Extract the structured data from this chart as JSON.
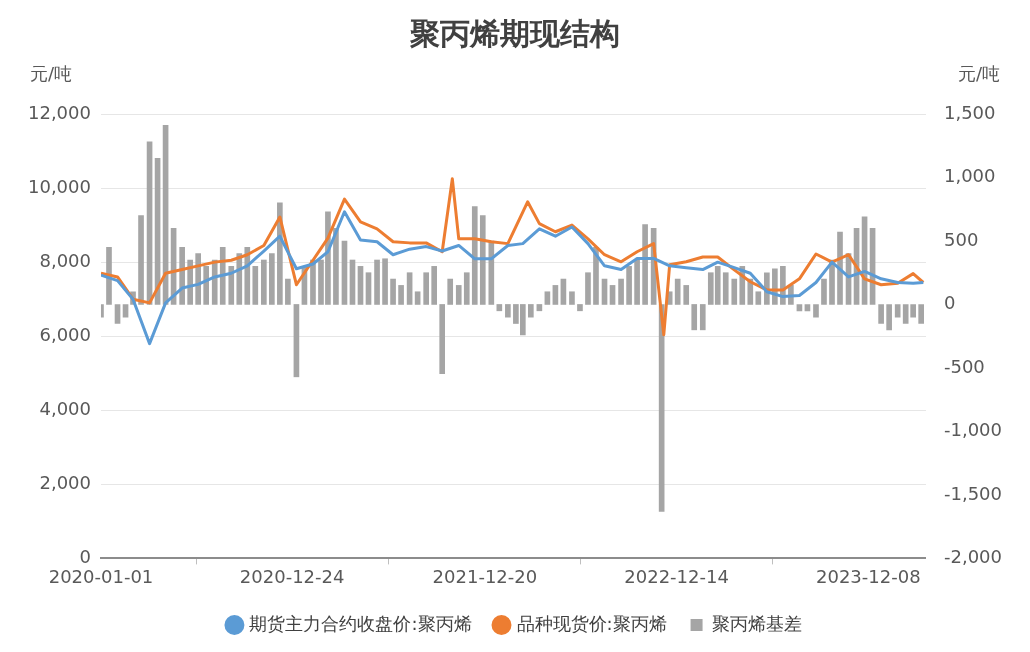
{
  "chart_data": {
    "type": "line",
    "title": "聚丙烯期现结构",
    "ylabel": "元/吨",
    "y2label": "元/吨",
    "xlim": [
      "2020-01-01",
      "2024-03-25"
    ],
    "xticks": [
      "2020-01-01",
      "2020-12-24",
      "2021-12-20",
      "2022-12-14",
      "2023-12-08"
    ],
    "ylim": [
      0,
      12000
    ],
    "yticks": [
      {
        "value": 0,
        "label": "0"
      },
      {
        "value": 2000,
        "label": "2,000"
      },
      {
        "value": 4000,
        "label": "4,000"
      },
      {
        "value": 6000,
        "label": "6,000"
      },
      {
        "value": 8000,
        "label": "8,000"
      },
      {
        "value": 10000,
        "label": "10,000"
      },
      {
        "value": 12000,
        "label": "12,000"
      }
    ],
    "y2lim": [
      -2000,
      1500
    ],
    "y2ticks": [
      {
        "value": -2000,
        "label": "-2,000"
      },
      {
        "value": -1500,
        "label": "-1,500"
      },
      {
        "value": -1000,
        "label": "-1,000"
      },
      {
        "value": -500,
        "label": "-500"
      },
      {
        "value": 0,
        "label": "0"
      },
      {
        "value": 500,
        "label": "500"
      },
      {
        "value": 1000,
        "label": "1,000"
      },
      {
        "value": 1500,
        "label": "1,500"
      }
    ],
    "grid": "y",
    "legend": "bottom",
    "marker": "none",
    "line_style": "solid",
    "series": [
      {
        "name": "期货主力合约收盘价:聚丙烯",
        "color": "#5b9bd5",
        "x": [
          "2020-01-01",
          "2020-02-01",
          "2020-03-01",
          "2020-04-01",
          "2020-05-01",
          "2020-06-01",
          "2020-07-01",
          "2020-08-01",
          "2020-09-01",
          "2020-10-01",
          "2020-11-01",
          "2020-12-01",
          "2021-01-01",
          "2021-02-01",
          "2021-03-01",
          "2021-04-01",
          "2021-05-01",
          "2021-06-01",
          "2021-07-01",
          "2021-08-01",
          "2021-09-01",
          "2021-10-01",
          "2021-11-01",
          "2021-12-01",
          "2022-01-01",
          "2022-02-01",
          "2022-03-01",
          "2022-04-01",
          "2022-05-01",
          "2022-06-01",
          "2022-07-01",
          "2022-08-01",
          "2022-09-01",
          "2022-10-01",
          "2022-11-01",
          "2022-12-01",
          "2023-01-01",
          "2023-02-01",
          "2023-03-01",
          "2023-04-01",
          "2023-05-01",
          "2023-06-01",
          "2023-07-01",
          "2023-08-01",
          "2023-09-01",
          "2023-10-01",
          "2023-11-01",
          "2023-12-01",
          "2024-01-01",
          "2024-02-01",
          "2024-03-01",
          "2024-03-20"
        ],
        "values": [
          7650,
          7500,
          7000,
          5800,
          6900,
          7300,
          7400,
          7600,
          7700,
          7900,
          8300,
          8700,
          7820,
          7950,
          8280,
          9360,
          8600,
          8550,
          8200,
          8350,
          8420,
          8300,
          8450,
          8090,
          8090,
          8450,
          8500,
          8900,
          8700,
          8950,
          8500,
          7900,
          7800,
          8100,
          8100,
          7900,
          7850,
          7800,
          8000,
          7850,
          7700,
          7200,
          7070,
          7100,
          7450,
          8000,
          7600,
          7750,
          7550,
          7450,
          7430,
          7450
        ]
      },
      {
        "name": "品种现货价:聚丙烯",
        "color": "#ed7d31",
        "x": [
          "2020-01-01",
          "2020-02-01",
          "2020-03-01",
          "2020-04-01",
          "2020-05-01",
          "2020-06-01",
          "2020-07-01",
          "2020-08-01",
          "2020-09-01",
          "2020-10-01",
          "2020-11-01",
          "2020-12-01",
          "2021-01-01",
          "2021-02-01",
          "2021-03-01",
          "2021-04-01",
          "2021-05-01",
          "2021-06-01",
          "2021-07-01",
          "2021-08-01",
          "2021-09-01",
          "2021-10-01",
          "2021-10-20",
          "2021-11-01",
          "2021-12-01",
          "2022-01-01",
          "2022-02-01",
          "2022-03-10",
          "2022-04-01",
          "2022-05-01",
          "2022-06-01",
          "2022-07-01",
          "2022-08-01",
          "2022-09-01",
          "2022-10-01",
          "2022-11-01",
          "2022-11-20",
          "2022-12-01",
          "2023-01-01",
          "2023-02-01",
          "2023-03-01",
          "2023-04-01",
          "2023-05-01",
          "2023-06-01",
          "2023-07-01",
          "2023-08-01",
          "2023-09-01",
          "2023-10-01",
          "2023-11-01",
          "2023-12-01",
          "2024-01-01",
          "2024-02-01",
          "2024-03-01",
          "2024-03-20"
        ],
        "values": [
          7700,
          7600,
          7000,
          6900,
          7700,
          7800,
          7900,
          8000,
          8050,
          8200,
          8450,
          9220,
          7390,
          8050,
          8650,
          9700,
          9090,
          8900,
          8550,
          8520,
          8520,
          8280,
          10250,
          8630,
          8630,
          8550,
          8500,
          9630,
          9040,
          8820,
          9000,
          8630,
          8200,
          8010,
          8280,
          8500,
          6040,
          7930,
          8010,
          8140,
          8140,
          7790,
          7470,
          7250,
          7250,
          7550,
          8220,
          8000,
          8200,
          7550,
          7390,
          7430,
          7690,
          7450
        ]
      },
      {
        "name": "聚丙烯基差",
        "type": "bar",
        "axis": "y2",
        "color": "#a5a5a5",
        "x": [
          "2020-01-01",
          "2020-01-16",
          "2020-02-01",
          "2020-02-16",
          "2020-03-01",
          "2020-03-16",
          "2020-04-01",
          "2020-04-16",
          "2020-05-01",
          "2020-05-16",
          "2020-06-01",
          "2020-06-16",
          "2020-07-01",
          "2020-07-16",
          "2020-08-01",
          "2020-08-16",
          "2020-09-01",
          "2020-09-16",
          "2020-10-01",
          "2020-10-16",
          "2020-11-01",
          "2020-11-16",
          "2020-12-01",
          "2020-12-16",
          "2021-01-01",
          "2021-01-16",
          "2021-02-01",
          "2021-02-16",
          "2021-03-01",
          "2021-03-16",
          "2021-04-01",
          "2021-04-16",
          "2021-05-01",
          "2021-05-16",
          "2021-06-01",
          "2021-06-16",
          "2021-07-01",
          "2021-07-16",
          "2021-08-01",
          "2021-08-16",
          "2021-09-01",
          "2021-09-16",
          "2021-10-01",
          "2021-10-16",
          "2021-11-01",
          "2021-11-16",
          "2021-12-01",
          "2021-12-16",
          "2022-01-01",
          "2022-01-16",
          "2022-02-01",
          "2022-02-16",
          "2022-03-01",
          "2022-03-16",
          "2022-04-01",
          "2022-04-16",
          "2022-05-01",
          "2022-05-16",
          "2022-06-01",
          "2022-06-16",
          "2022-07-01",
          "2022-07-16",
          "2022-08-01",
          "2022-08-16",
          "2022-09-01",
          "2022-09-16",
          "2022-10-01",
          "2022-10-16",
          "2022-11-01",
          "2022-11-16",
          "2022-12-01",
          "2022-12-16",
          "2023-01-01",
          "2023-01-16",
          "2023-02-01",
          "2023-02-16",
          "2023-03-01",
          "2023-03-16",
          "2023-04-01",
          "2023-04-16",
          "2023-05-01",
          "2023-05-16",
          "2023-06-01",
          "2023-06-16",
          "2023-07-01",
          "2023-07-16",
          "2023-08-01",
          "2023-08-16",
          "2023-09-01",
          "2023-09-16",
          "2023-10-01",
          "2023-10-16",
          "2023-11-01",
          "2023-11-16",
          "2023-12-01",
          "2023-12-16",
          "2024-01-01",
          "2024-01-16",
          "2024-02-01",
          "2024-02-16",
          "2024-03-01",
          "2024-03-16"
        ],
        "values": [
          -100,
          450,
          -150,
          -100,
          100,
          700,
          1280,
          1150,
          1410,
          600,
          450,
          350,
          400,
          300,
          350,
          450,
          300,
          400,
          450,
          300,
          350,
          400,
          800,
          200,
          -570,
          300,
          350,
          350,
          730,
          600,
          500,
          350,
          300,
          250,
          350,
          360,
          200,
          150,
          250,
          100,
          250,
          300,
          -545,
          200,
          150,
          250,
          770,
          700,
          500,
          -50,
          -100,
          -150,
          -240,
          -100,
          -50,
          100,
          150,
          200,
          100,
          -50,
          250,
          450,
          200,
          150,
          200,
          300,
          350,
          630,
          600,
          -1630,
          100,
          200,
          150,
          -200,
          -200,
          250,
          300,
          250,
          200,
          300,
          200,
          100,
          250,
          280,
          300,
          150,
          -50,
          -50,
          -100,
          200,
          350,
          570,
          400,
          600,
          690,
          600,
          -150,
          -200,
          -100,
          -150,
          -100,
          -150
        ]
      }
    ]
  }
}
